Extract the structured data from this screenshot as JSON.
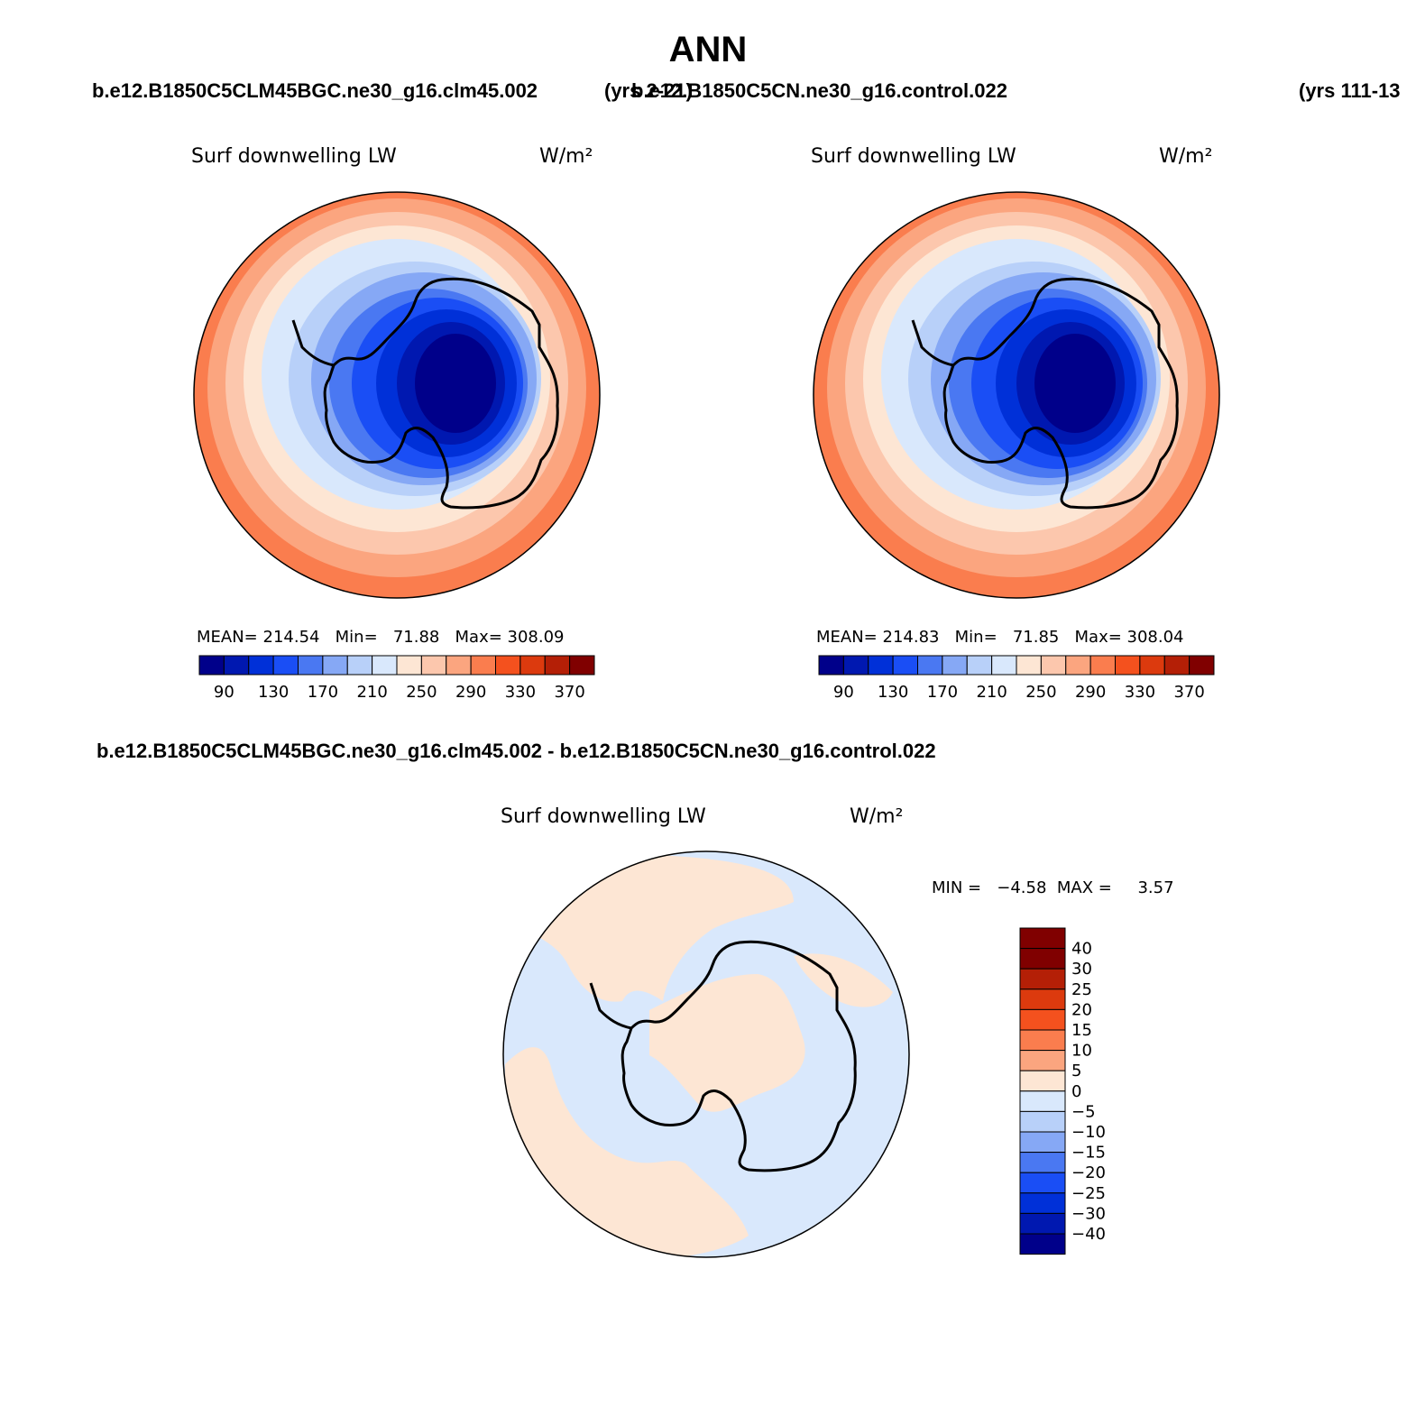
{
  "figure": {
    "season": "ANN",
    "case_title": "b.e12.B1850C5CLM45BGC.ne30_g16.clm45.002",
    "case_years": "(yrs 2-21)",
    "control_title": "b.e12.B1850C5CN.ne30_g16.control.022",
    "control_years": "(yrs 111-13",
    "diff_title": "b.e12.B1850C5CLM45BGC.ne30_g16.clm45.002 - b.e12.B1850C5CN.ne30_g16.control.022"
  },
  "panels": [
    {
      "variable": "Surf downwelling LW",
      "units": "W/m²",
      "stats": "MEAN= 214.54   Min=   71.88   Max= 308.09"
    },
    {
      "variable": "Surf downwelling LW",
      "units": "W/m²",
      "stats": "MEAN= 214.83   Min=   71.85   Max= 308.04"
    },
    {
      "variable": "Surf downwelling LW",
      "units": "W/m²",
      "stats": "MIN =   −4.58  MAX =     3.57"
    }
  ],
  "colorbars": {
    "absolute": {
      "labels": [
        "90",
        "130",
        "170",
        "210",
        "250",
        "290",
        "330",
        "370"
      ],
      "colors": [
        "#00008a",
        "#0018b0",
        "#0030d8",
        "#1a4ef5",
        "#4a78f2",
        "#86a8f5",
        "#b8d0f9",
        "#d9e8fc",
        "#fde6d4",
        "#fcc7ad",
        "#fba57f",
        "#fa7d4e",
        "#f4511e",
        "#dc3a0e",
        "#b41f06",
        "#800000"
      ]
    },
    "difference": {
      "labels": [
        "40",
        "30",
        "25",
        "20",
        "15",
        "10",
        "5",
        "0",
        "−5",
        "−10",
        "−15",
        "−20",
        "−25",
        "−30",
        "−40"
      ],
      "colors": [
        "#800000",
        "#b41f06",
        "#dc3a0e",
        "#f4511e",
        "#fa7d4e",
        "#fba57f",
        "#fde6d4",
        "#d9e8fc",
        "#b8d0f9",
        "#86a8f5",
        "#4a78f2",
        "#1a4ef5",
        "#0030d8",
        "#0018b0",
        "#00008a"
      ]
    }
  }
}
